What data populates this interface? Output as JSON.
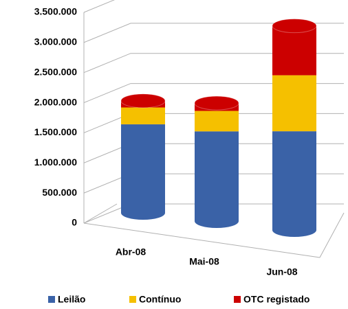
{
  "chart_data": {
    "type": "bar",
    "stacked": true,
    "categories": [
      "Abr-08",
      "Mai-08",
      "Jun-08"
    ],
    "series": [
      {
        "name": "Leilão",
        "color": "#3a62a7",
        "values": [
          1470000,
          1490000,
          1640000
        ]
      },
      {
        "name": "Contínuo",
        "color": "#f5c000",
        "values": [
          280000,
          340000,
          930000
        ]
      },
      {
        "name": "OTC registado",
        "color": "#cc0000",
        "values": [
          110000,
          130000,
          820000
        ]
      }
    ],
    "ylim": [
      0,
      3500000
    ],
    "yticks": [
      0,
      {
        "value": 500000,
        "label": "500.000"
      },
      {
        "value": 1000000,
        "label": "1.000.000"
      },
      {
        "value": 1500000,
        "label": "1.500.000"
      },
      {
        "value": 2000000,
        "label": "2.000.000"
      },
      {
        "value": 2500000,
        "label": "2.500.000"
      },
      {
        "value": 3000000,
        "label": "3.000.000"
      },
      {
        "value": 3500000,
        "label": "3.500.000"
      }
    ],
    "grid": true,
    "legend": "bottom"
  }
}
